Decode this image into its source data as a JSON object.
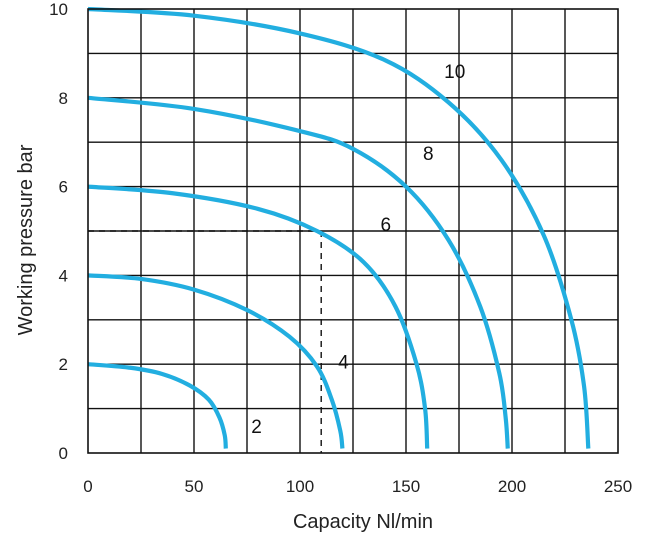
{
  "chart_data": {
    "type": "line",
    "xlabel": "Capacity Nl/min",
    "ylabel": "Working pressure bar",
    "xlim": [
      0,
      250
    ],
    "ylim": [
      0,
      10
    ],
    "xticks": [
      0,
      50,
      100,
      150,
      200,
      250
    ],
    "yticks": [
      0,
      2,
      4,
      6,
      8,
      10
    ],
    "grid": true,
    "series_color": "#22aee0",
    "series": [
      {
        "label": "2",
        "points": [
          [
            0,
            2
          ],
          [
            20,
            1.92
          ],
          [
            35,
            1.78
          ],
          [
            48,
            1.52
          ],
          [
            57,
            1.2
          ],
          [
            62,
            0.8
          ],
          [
            64.5,
            0.4
          ],
          [
            65,
            0.1
          ]
        ],
        "label_pos": [
          77,
          0.45
        ]
      },
      {
        "label": "4",
        "points": [
          [
            0,
            4
          ],
          [
            25,
            3.92
          ],
          [
            50,
            3.68
          ],
          [
            75,
            3.22
          ],
          [
            95,
            2.62
          ],
          [
            108,
            1.95
          ],
          [
            115,
            1.2
          ],
          [
            119,
            0.5
          ],
          [
            120,
            0.1
          ]
        ],
        "label_pos": [
          118,
          1.9
        ]
      },
      {
        "label": "6",
        "points": [
          [
            0,
            6
          ],
          [
            40,
            5.85
          ],
          [
            80,
            5.5
          ],
          [
            108,
            5.0
          ],
          [
            130,
            4.3
          ],
          [
            145,
            3.3
          ],
          [
            155,
            2.0
          ],
          [
            159,
            1.0
          ],
          [
            160,
            0.1
          ]
        ],
        "label_pos": [
          138,
          5.0
        ]
      },
      {
        "label": "8",
        "points": [
          [
            0,
            8
          ],
          [
            50,
            7.75
          ],
          [
            100,
            7.25
          ],
          [
            125,
            6.85
          ],
          [
            150,
            6.0
          ],
          [
            170,
            4.8
          ],
          [
            185,
            3.3
          ],
          [
            194,
            1.8
          ],
          [
            197,
            0.8
          ],
          [
            198,
            0.1
          ]
        ],
        "label_pos": [
          158,
          6.6
        ]
      },
      {
        "label": "10",
        "points": [
          [
            0,
            10
          ],
          [
            50,
            9.85
          ],
          [
            100,
            9.45
          ],
          [
            140,
            8.85
          ],
          [
            170,
            7.9
          ],
          [
            195,
            6.6
          ],
          [
            215,
            4.9
          ],
          [
            228,
            3.0
          ],
          [
            234,
            1.5
          ],
          [
            236,
            0.1
          ]
        ],
        "label_pos": [
          168,
          8.45
        ]
      }
    ],
    "annotation": {
      "style": "dashed",
      "point": [
        110,
        5
      ],
      "color": "#111111"
    }
  }
}
